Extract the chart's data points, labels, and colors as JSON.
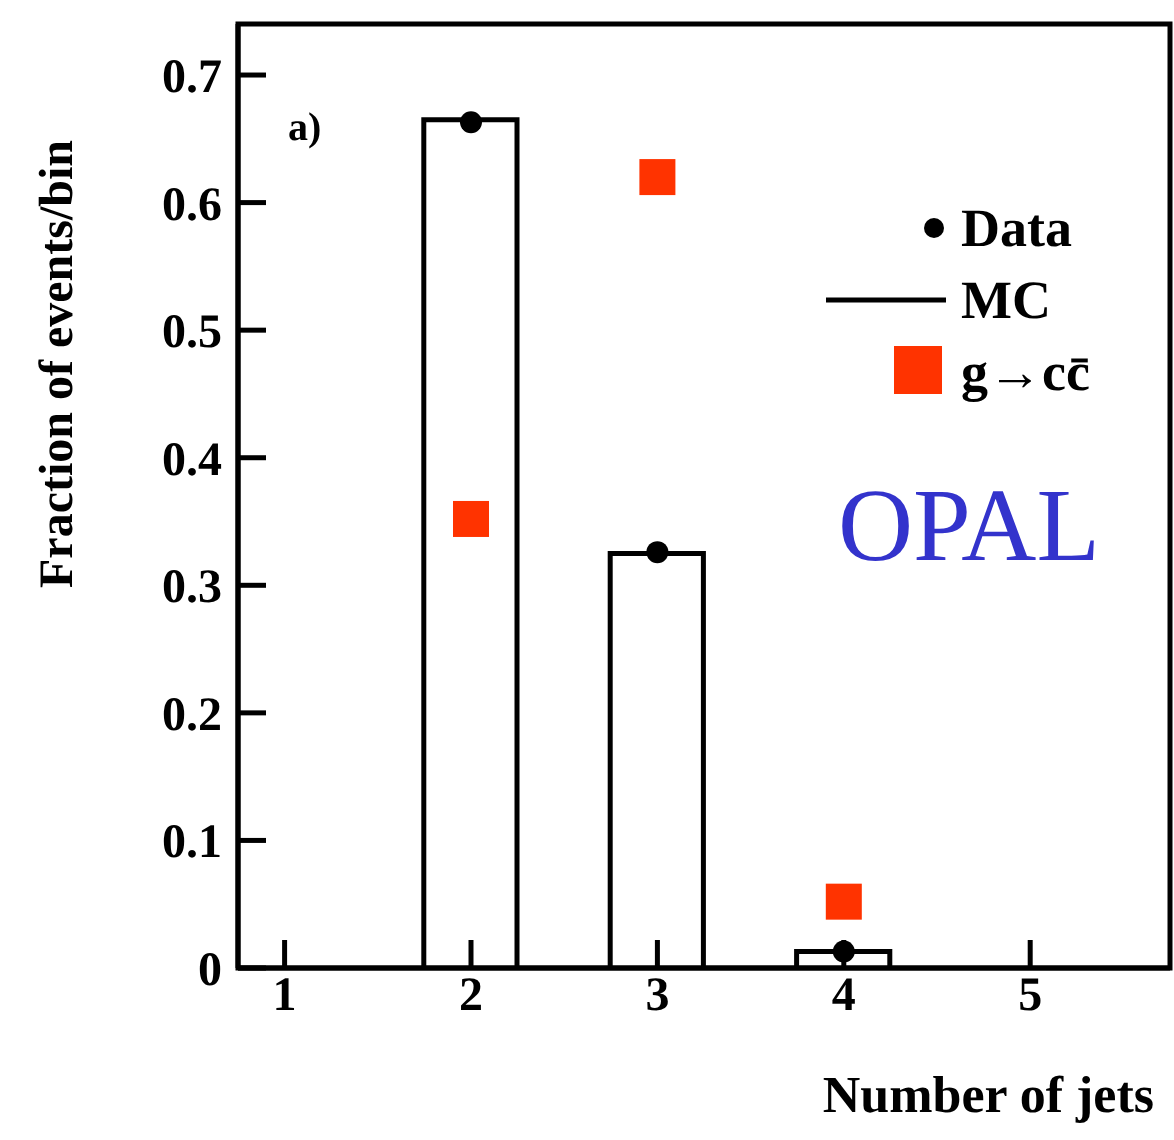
{
  "chart_data": {
    "type": "bar",
    "xlabel": "Number of jets",
    "ylabel": "Fraction of events/bin",
    "x": [
      2,
      3,
      4
    ],
    "series": [
      {
        "name": "Data",
        "type": "scatter",
        "marker": "circle",
        "color": "#000000",
        "values": [
          0.663,
          0.326,
          0.013
        ]
      },
      {
        "name": "MC",
        "color": "#000000",
        "values": [
          0.665,
          0.325,
          0.013
        ]
      },
      {
        "name": "g→cc̄",
        "type": "scatter",
        "marker": "square",
        "color": "#ff3300",
        "values": [
          0.352,
          0.62,
          0.052
        ]
      }
    ],
    "xlim": [
      0.75,
      5.75
    ],
    "xticks": [
      1,
      2,
      3,
      4,
      5
    ],
    "ylim": [
      0,
      0.74
    ],
    "yticks": [
      0,
      0.1,
      0.2,
      0.3,
      0.4,
      0.5,
      0.6,
      0.7
    ],
    "grid": false,
    "legend": "top right",
    "annotations": [
      "a)",
      "OPAL"
    ]
  }
}
